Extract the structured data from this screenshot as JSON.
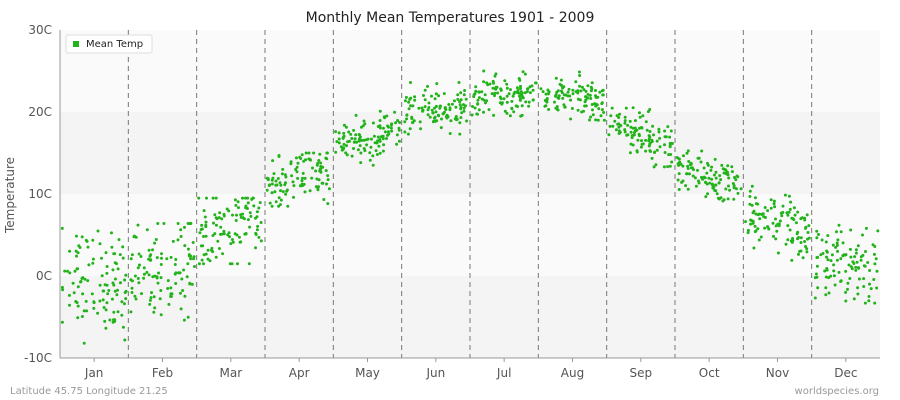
{
  "chart_data": {
    "type": "scatter",
    "title": "Monthly Mean Temperatures 1901 - 2009",
    "ylabel": "Temperature",
    "xlabel": "",
    "ylim": [
      -10,
      30
    ],
    "yticks": [
      {
        "value": -10,
        "label": "-10C"
      },
      {
        "value": 0,
        "label": "0C"
      },
      {
        "value": 10,
        "label": "10C"
      },
      {
        "value": 20,
        "label": "20C"
      },
      {
        "value": 30,
        "label": "30C"
      }
    ],
    "categories": [
      "Jan",
      "Feb",
      "Mar",
      "Apr",
      "May",
      "Jun",
      "Jul",
      "Aug",
      "Sep",
      "Oct",
      "Nov",
      "Dec"
    ],
    "years": [
      1901,
      2009
    ],
    "grid": true,
    "legend_position": "top-left",
    "series": [
      {
        "name": "Mean Temp",
        "color": "#22b31b",
        "monthly_mean": [
          -0.5,
          1.0,
          5.8,
          11.7,
          16.8,
          20.2,
          22.0,
          21.7,
          17.3,
          11.8,
          6.1,
          1.6
        ],
        "monthly_spread": [
          3.2,
          3.0,
          2.2,
          1.6,
          1.5,
          1.3,
          1.2,
          1.3,
          1.4,
          1.4,
          1.8,
          2.2
        ],
        "monthly_min": [
          -8.6,
          -8.0,
          1.5,
          8.5,
          13.5,
          17.3,
          19.5,
          19.0,
          13.3,
          8.5,
          0.5,
          -3.3
        ],
        "monthly_max": [
          5.8,
          6.4,
          9.5,
          15.0,
          20.2,
          23.6,
          25.0,
          25.0,
          21.2,
          16.5,
          11.0,
          6.2
        ]
      }
    ]
  },
  "footer": {
    "left": "Latitude 45.75 Longitude 21.25",
    "right": "worldspecies.org"
  }
}
